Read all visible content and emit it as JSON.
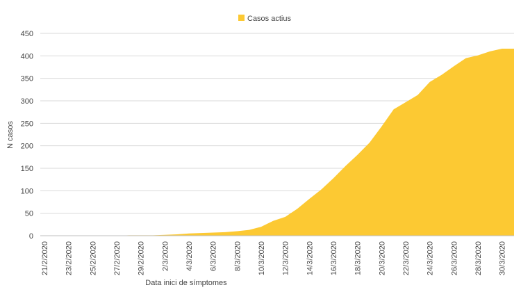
{
  "chart_data": {
    "type": "area",
    "x_label": "Data inici de símptomes",
    "y_label": "N casos",
    "categories": [
      "21/2/2020",
      null,
      "23/2/2020",
      null,
      "25/2/2020",
      null,
      "27/2/2020",
      null,
      "29/2/2020",
      null,
      "2/3/2020",
      null,
      "4/3/2020",
      null,
      "6/3/2020",
      null,
      "8/3/2020",
      null,
      "10/3/2020",
      null,
      "12/3/2020",
      null,
      "14/3/2020",
      null,
      "16/3/2020",
      null,
      "18/3/2020",
      null,
      "20/3/2020",
      null,
      "22/3/2020",
      null,
      "24/3/2020",
      null,
      "26/3/2020",
      null,
      "28/3/2020",
      null,
      "30/3/2020",
      null
    ],
    "series": [
      {
        "name": "Casos actius",
        "color": "#fcc933",
        "values": [
          0,
          0,
          0,
          0,
          0,
          0,
          0,
          1,
          1,
          1,
          2,
          3,
          5,
          6,
          7,
          8,
          10,
          13,
          20,
          33,
          42,
          60,
          82,
          103,
          128,
          155,
          180,
          207,
          243,
          281,
          297,
          313,
          342,
          358,
          377,
          395,
          401,
          410,
          416,
          416
        ]
      }
    ],
    "ylim": [
      0,
      450
    ],
    "yticks": [
      0,
      50,
      100,
      150,
      200,
      250,
      300,
      350,
      400,
      450
    ],
    "grid": true,
    "legend": "top"
  }
}
